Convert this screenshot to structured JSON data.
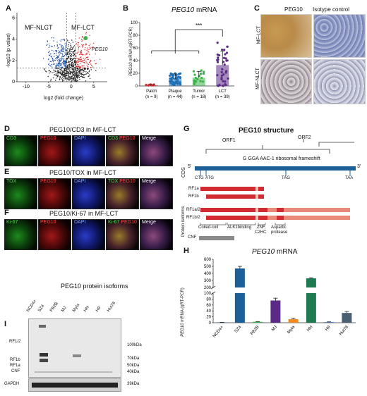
{
  "panels": {
    "A": "A",
    "B": "B",
    "C": "C",
    "D": "D",
    "E": "E",
    "F": "F",
    "G": "G",
    "H": "H",
    "I": "I"
  },
  "colors": {
    "red": "#d62d2d",
    "blue": "#1f4fa0",
    "green": "#3bb34a",
    "purple": "#5b2a86",
    "cds": "#1d5f97",
    "isoform_dark": "#d12a30",
    "isoform_light": "#e9897a",
    "gray": "#8a8a8a"
  },
  "panel_a": {
    "left_label": "MF-NLCT",
    "right_label": "MF-LCT",
    "gene": "PEG10",
    "ylabel": "-log10 (p value)",
    "xlabel": "log2 (fold change)",
    "xticks": [
      "-10",
      "-5",
      "0",
      "5"
    ],
    "yticks": [
      "0",
      "2",
      "4",
      "6"
    ],
    "chart_data": {
      "type": "scatter",
      "xlabel": "log2 (fold change)",
      "ylabel": "-log10 (p value)",
      "xlim": [
        -12,
        8
      ],
      "ylim": [
        0,
        6.5
      ],
      "thresholds": {
        "fold_change": [
          -1,
          1
        ],
        "p": 1.3
      },
      "highlight": {
        "name": "PEG10",
        "x": 3.2,
        "y": 4.1
      }
    }
  },
  "panel_b": {
    "title": "PEG10",
    "title_suffix": " mRNA",
    "ylabel_gene": "PEG10",
    "ylabel_rest": " mRNA (qRT-PCR)",
    "sig": "***",
    "chart_data": {
      "type": "bar",
      "categories": [
        "Patch",
        "Plaque",
        "Tumor",
        "LCT"
      ],
      "n_labels": [
        "(n = 9)",
        "(n = 44)",
        "(n = 18)",
        "(n = 39)"
      ],
      "values": [
        1.2,
        11,
        13,
        33
      ],
      "errors": [
        1,
        8,
        10,
        22
      ],
      "yticks": [
        "0",
        "20",
        "40",
        "60",
        "80",
        "100"
      ],
      "ylim": [
        0,
        100
      ]
    }
  },
  "panel_c": {
    "col1": "PEG10",
    "col2": "Isotype control",
    "row1": "MF-LCT",
    "row2": "MF-NLCT"
  },
  "panel_d": {
    "title": "PEG10/CD3 in MF-LCT",
    "channels": [
      [
        "CD3"
      ],
      [
        "PEG10"
      ],
      [
        "DAPI"
      ],
      [
        "CD3",
        " PEG10"
      ],
      [
        "Merge"
      ]
    ]
  },
  "panel_e": {
    "title": "PEG10/TOX in MF-LCT",
    "channels": [
      [
        "TOX"
      ],
      [
        "PEG10"
      ],
      [
        "DAPI"
      ],
      [
        "TOX",
        " PEG10"
      ],
      [
        "Merge"
      ]
    ]
  },
  "panel_f": {
    "title": "PEG10/Ki-67 in MF-LCT",
    "channels": [
      [
        "Ki-67"
      ],
      [
        "PEG10"
      ],
      [
        "DAPI"
      ],
      [
        "Ki-67",
        " PEG10"
      ],
      [
        "Merge"
      ]
    ]
  },
  "panel_g": {
    "title": "PEG10 structure",
    "orf1": "ORF1",
    "orf2": "ORF2",
    "frameshift": "G GGA AAC-1 ribosomal frameshift",
    "cds": "CDS",
    "five": "5'",
    "three": "3'",
    "start1": "CTG",
    "start2": "ATG",
    "tag": "TAG",
    "taa": "TAA",
    "side_label": "Protein isoforms",
    "isoforms": [
      "RF1a",
      "RF1b",
      "RF1a/2",
      "RF1b/2"
    ],
    "domains": [
      "Coiled-coil",
      "ALK1binding",
      "ZNF,",
      "C2HC",
      "Aspartic",
      "protease"
    ],
    "cnf": "CNF"
  },
  "panel_h": {
    "title": "PEG10",
    "title_suffix": " mRNA",
    "ylabel_gene": "PEG10",
    "ylabel_rest": " mRNA (qRT-PCR)",
    "chart_data": {
      "type": "bar",
      "categories": [
        "NCD4+",
        "SZ4",
        "PB2B",
        "MJ",
        "Myla",
        "HH",
        "H9",
        "Hut78"
      ],
      "values": [
        1,
        470,
        3,
        75,
        12,
        330,
        2,
        33
      ],
      "errors": [
        0.5,
        30,
        1,
        8,
        3,
        8,
        1,
        5
      ],
      "colors": [
        "#1f4fa0",
        "#1d5f97",
        "#3bb34a",
        "#5b2a86",
        "#f08a24",
        "#1e7a50",
        "#2e6fb3",
        "#4b5f73"
      ],
      "yticks": [
        "0",
        "20",
        "40",
        "60",
        "80",
        "100",
        "200",
        "300",
        "400",
        "500",
        "600"
      ],
      "axis_break": [
        100,
        200
      ]
    }
  },
  "panel_i": {
    "title": "PEG10 protein isoforms",
    "lanes": [
      "NCD4+",
      "SZ4",
      "PB2B",
      "MJ",
      "Myla",
      "HH",
      "H9",
      "Hut78"
    ],
    "left_markers": [
      "RF1/2",
      "RF1b",
      "RF1a",
      "CNF"
    ],
    "kda": [
      "100kDa",
      "70kDa",
      "50kDa",
      "40kDa"
    ],
    "gapdh": "GAPDH",
    "gapdh_kda": "39kDa"
  }
}
